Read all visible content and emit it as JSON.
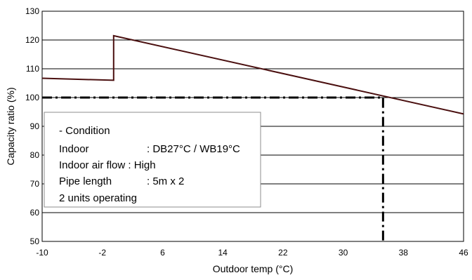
{
  "chart_data": {
    "type": "line",
    "xlabel": "Outdoor  temp (°C)",
    "ylabel": "Capacity ratio (%)",
    "xlim": [
      -10,
      46
    ],
    "ylim": [
      50,
      130
    ],
    "xticks": [
      -10,
      -2,
      6,
      14,
      22,
      30,
      38,
      46
    ],
    "yticks": [
      50,
      60,
      70,
      80,
      90,
      100,
      110,
      120,
      130
    ],
    "xtick_labels": [
      "-10",
      "-2",
      "6",
      "14",
      "22",
      "30",
      "38",
      "46"
    ],
    "ytick_labels": [
      "50",
      "60",
      "70",
      "80",
      "90",
      "100",
      "110",
      "120",
      "130"
    ],
    "grid": "horizontal",
    "series": [
      {
        "color": "#4a0f0f",
        "style": "solid",
        "points": [
          [
            -10,
            106.7
          ],
          [
            -0.5,
            106
          ],
          [
            -0.5,
            121.5
          ],
          [
            46,
            94.3
          ]
        ]
      }
    ],
    "reference_lines": [
      {
        "color": "#000000",
        "style": "dash-dot",
        "points": [
          [
            -10,
            100
          ],
          [
            35.3,
            100
          ],
          [
            35.3,
            50
          ]
        ]
      }
    ],
    "annotation": {
      "lines": [
        "- Condition",
        "Indoor",
        ": DB27°C / WB19°C",
        "Indoor air flow : High",
        "Pipe length",
        ": 5m x 2",
        "2 units operating"
      ]
    }
  }
}
